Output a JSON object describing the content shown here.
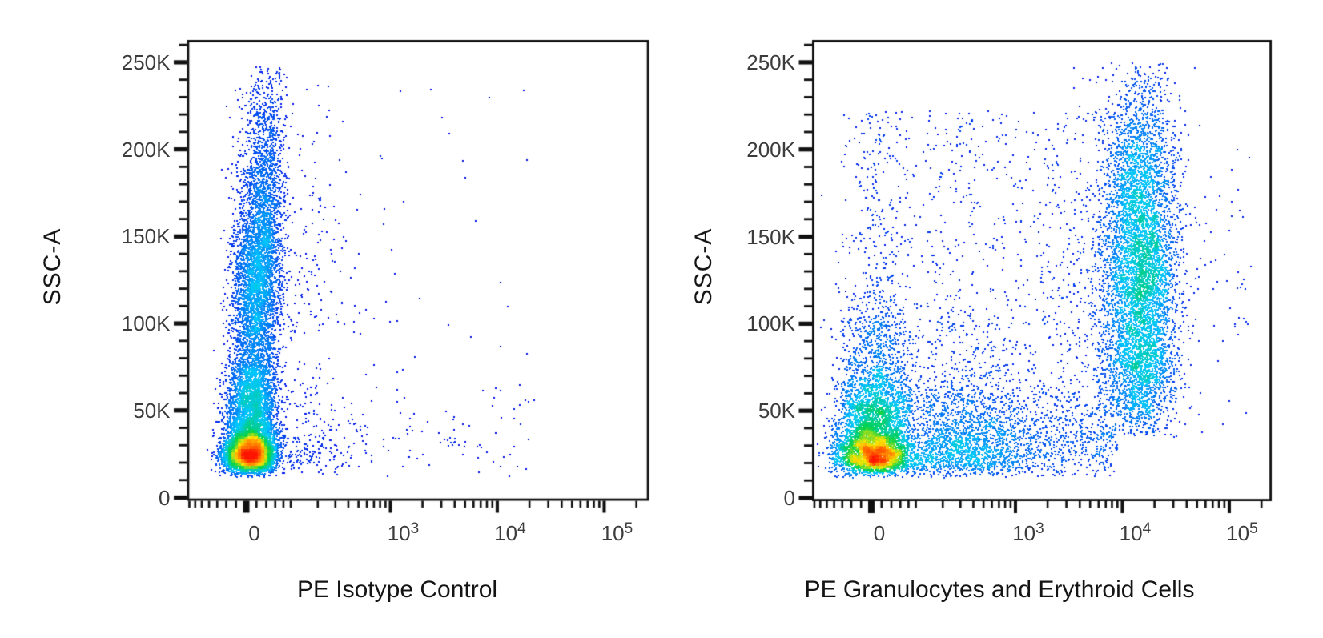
{
  "figure": {
    "description": "Flow cytometry pseudocolor density dot plots, two panels",
    "panel_count": 2
  },
  "colors": {
    "background": "#ffffff",
    "frame": "#101010",
    "tick": "#101010",
    "tick_label": "#3c3c3c",
    "axis_label": "#141414",
    "density_scale": [
      {
        "pos": 0,
        "color": "#0000e6"
      },
      {
        "pos": 0.28,
        "color": "#00c8ff"
      },
      {
        "pos": 0.5,
        "color": "#00d24b"
      },
      {
        "pos": 0.7,
        "color": "#ffe600"
      },
      {
        "pos": 0.85,
        "color": "#ff7d00"
      },
      {
        "pos": 1,
        "color": "#ff1400"
      }
    ]
  },
  "chart_data": [
    {
      "type": "scatter",
      "panel": "left",
      "xlabel": "PE Isotype Control",
      "ylabel": "SSC-A",
      "x_scale": "biexponential",
      "y_scale": "linear",
      "x_axis": {
        "major": [
          {
            "value": 0,
            "label": "0"
          },
          {
            "value": 1000,
            "label": "10^3"
          },
          {
            "value": 10000,
            "label": "10^4"
          },
          {
            "value": 100000,
            "label": "10^5"
          }
        ],
        "minor": [
          -140,
          -120,
          -100,
          -80,
          -60,
          -40,
          -20,
          20,
          40,
          60,
          80,
          100,
          200,
          300,
          400,
          500,
          600,
          700,
          800,
          900,
          2000,
          3000,
          4000,
          5000,
          6000,
          7000,
          8000,
          9000,
          20000,
          30000,
          40000,
          50000,
          60000,
          70000,
          80000,
          90000,
          200000
        ],
        "range": [
          -150,
          262144
        ]
      },
      "y_axis": {
        "major": [
          {
            "value": 0,
            "label": "0"
          },
          {
            "value": 50000,
            "label": "50K"
          },
          {
            "value": 100000,
            "label": "100K"
          },
          {
            "value": 150000,
            "label": "150K"
          },
          {
            "value": 200000,
            "label": "200K"
          },
          {
            "value": 250000,
            "label": "250K"
          }
        ],
        "minor_step": 10000,
        "minor_max": 260000,
        "range": [
          0,
          262144
        ]
      },
      "populations": [
        {
          "name": "isotype-negative-main",
          "n": 13000,
          "pe": {
            "kind": "normal",
            "mean": 3,
            "sd": 25,
            "tail_frac": 0.05,
            "tail_scale": 120,
            "shift_per_ssc": 40
          },
          "ssc_mix": [
            {
              "w": 0.45,
              "kind": "lognormal",
              "mu": 10.166,
              "sigma": 0.27
            },
            {
              "w": 0.17,
              "kind": "normal",
              "mean": 55000,
              "sd": 14000
            },
            {
              "w": 0.28,
              "kind": "normal",
              "mean": 120000,
              "sd": 34000
            },
            {
              "w": 0.1,
              "kind": "normal",
              "mean": 182000,
              "sd": 40000
            }
          ],
          "ssc_clamp": [
            11500,
            248000
          ]
        },
        {
          "name": "scattered-background-events",
          "n": 160,
          "pe": {
            "kind": "asinh_uniform",
            "lo": 130,
            "hi": 25000
          },
          "ssc_mix": [
            {
              "w": 0.65,
              "kind": "normal",
              "mean": 33000,
              "sd": 14000
            },
            {
              "w": 0.35,
              "kind": "uniform",
              "lo": 15000,
              "hi": 238000
            }
          ],
          "ssc_clamp": [
            12000,
            245000
          ]
        }
      ]
    },
    {
      "type": "scatter",
      "panel": "right",
      "xlabel": "PE Granulocytes and Erythroid Cells",
      "ylabel": "SSC-A",
      "x_scale": "biexponential",
      "y_scale": "linear",
      "x_axis": {
        "major": [
          {
            "value": 0,
            "label": "0"
          },
          {
            "value": 1000,
            "label": "10^3"
          },
          {
            "value": 10000,
            "label": "10^4"
          },
          {
            "value": 100000,
            "label": "10^5"
          }
        ],
        "minor": [
          -140,
          -120,
          -100,
          -80,
          -60,
          -40,
          -20,
          20,
          40,
          60,
          80,
          100,
          200,
          300,
          400,
          500,
          600,
          700,
          800,
          900,
          2000,
          3000,
          4000,
          5000,
          6000,
          7000,
          8000,
          9000,
          20000,
          30000,
          40000,
          50000,
          60000,
          70000,
          80000,
          90000,
          200000
        ],
        "range": [
          -150,
          262144
        ]
      },
      "y_axis": {
        "major": [
          {
            "value": 0,
            "label": "0"
          },
          {
            "value": 50000,
            "label": "50K"
          },
          {
            "value": 100000,
            "label": "100K"
          },
          {
            "value": 150000,
            "label": "150K"
          },
          {
            "value": 200000,
            "label": "200K"
          },
          {
            "value": 250000,
            "label": "250K"
          }
        ],
        "minor_step": 10000,
        "minor_max": 260000,
        "range": [
          0,
          262144
        ]
      },
      "populations": [
        {
          "name": "pe-negative-lymphocytes-monocytes",
          "n": 7400,
          "pe": {
            "kind": "normal",
            "mean": 2,
            "sd": 38,
            "tail_frac": 0.28,
            "tail_scale": 330,
            "shift_per_ssc": 15
          },
          "ssc_mix": [
            {
              "w": 0.52,
              "kind": "lognormal",
              "mu": 10.146,
              "sigma": 0.29
            },
            {
              "w": 0.26,
              "kind": "normal",
              "mean": 45000,
              "sd": 13000
            },
            {
              "w": 0.17,
              "kind": "normal",
              "mean": 72000,
              "sd": 24000
            },
            {
              "w": 0.05,
              "kind": "uniform",
              "lo": 90000,
              "hi": 222000
            }
          ],
          "ssc_clamp": [
            11500,
            248000
          ]
        },
        {
          "name": "pe-positive-granulocytes-erythroid",
          "n": 6600,
          "pe": {
            "kind": "log10normal",
            "mean": 4.17,
            "sd": 0.17,
            "low_tail_frac": 0.05,
            "low_tail": {
              "mean": 3.75,
              "sd": 0.28
            }
          },
          "ssc_mix": [
            {
              "w": 0.58,
              "kind": "normal",
              "mean": 125000,
              "sd": 36000
            },
            {
              "w": 0.24,
              "kind": "normal",
              "mean": 185000,
              "sd": 32000
            },
            {
              "w": 0.18,
              "kind": "normal",
              "mean": 72000,
              "sd": 20000
            }
          ],
          "ssc_clamp": [
            35000,
            250000
          ]
        },
        {
          "name": "intermediate-scatter",
          "n": 1500,
          "pe": {
            "kind": "asinh_uniform",
            "lo": 130,
            "hi": 9000
          },
          "ssc_mix": [
            {
              "w": 0.68,
              "kind": "normal",
              "mean": 34000,
              "sd": 16000
            },
            {
              "w": 0.32,
              "kind": "uniform",
              "lo": 14000,
              "hi": 225000
            }
          ],
          "ssc_clamp": [
            12000,
            245000
          ]
        },
        {
          "name": "pe-high-outliers",
          "n": 60,
          "pe": {
            "kind": "asinh_uniform",
            "lo": 35000,
            "hi": 160000
          },
          "ssc_mix": [
            {
              "w": 1,
              "kind": "normal",
              "mean": 130000,
              "sd": 45000
            }
          ],
          "ssc_clamp": [
            40000,
            245000
          ]
        }
      ]
    }
  ]
}
